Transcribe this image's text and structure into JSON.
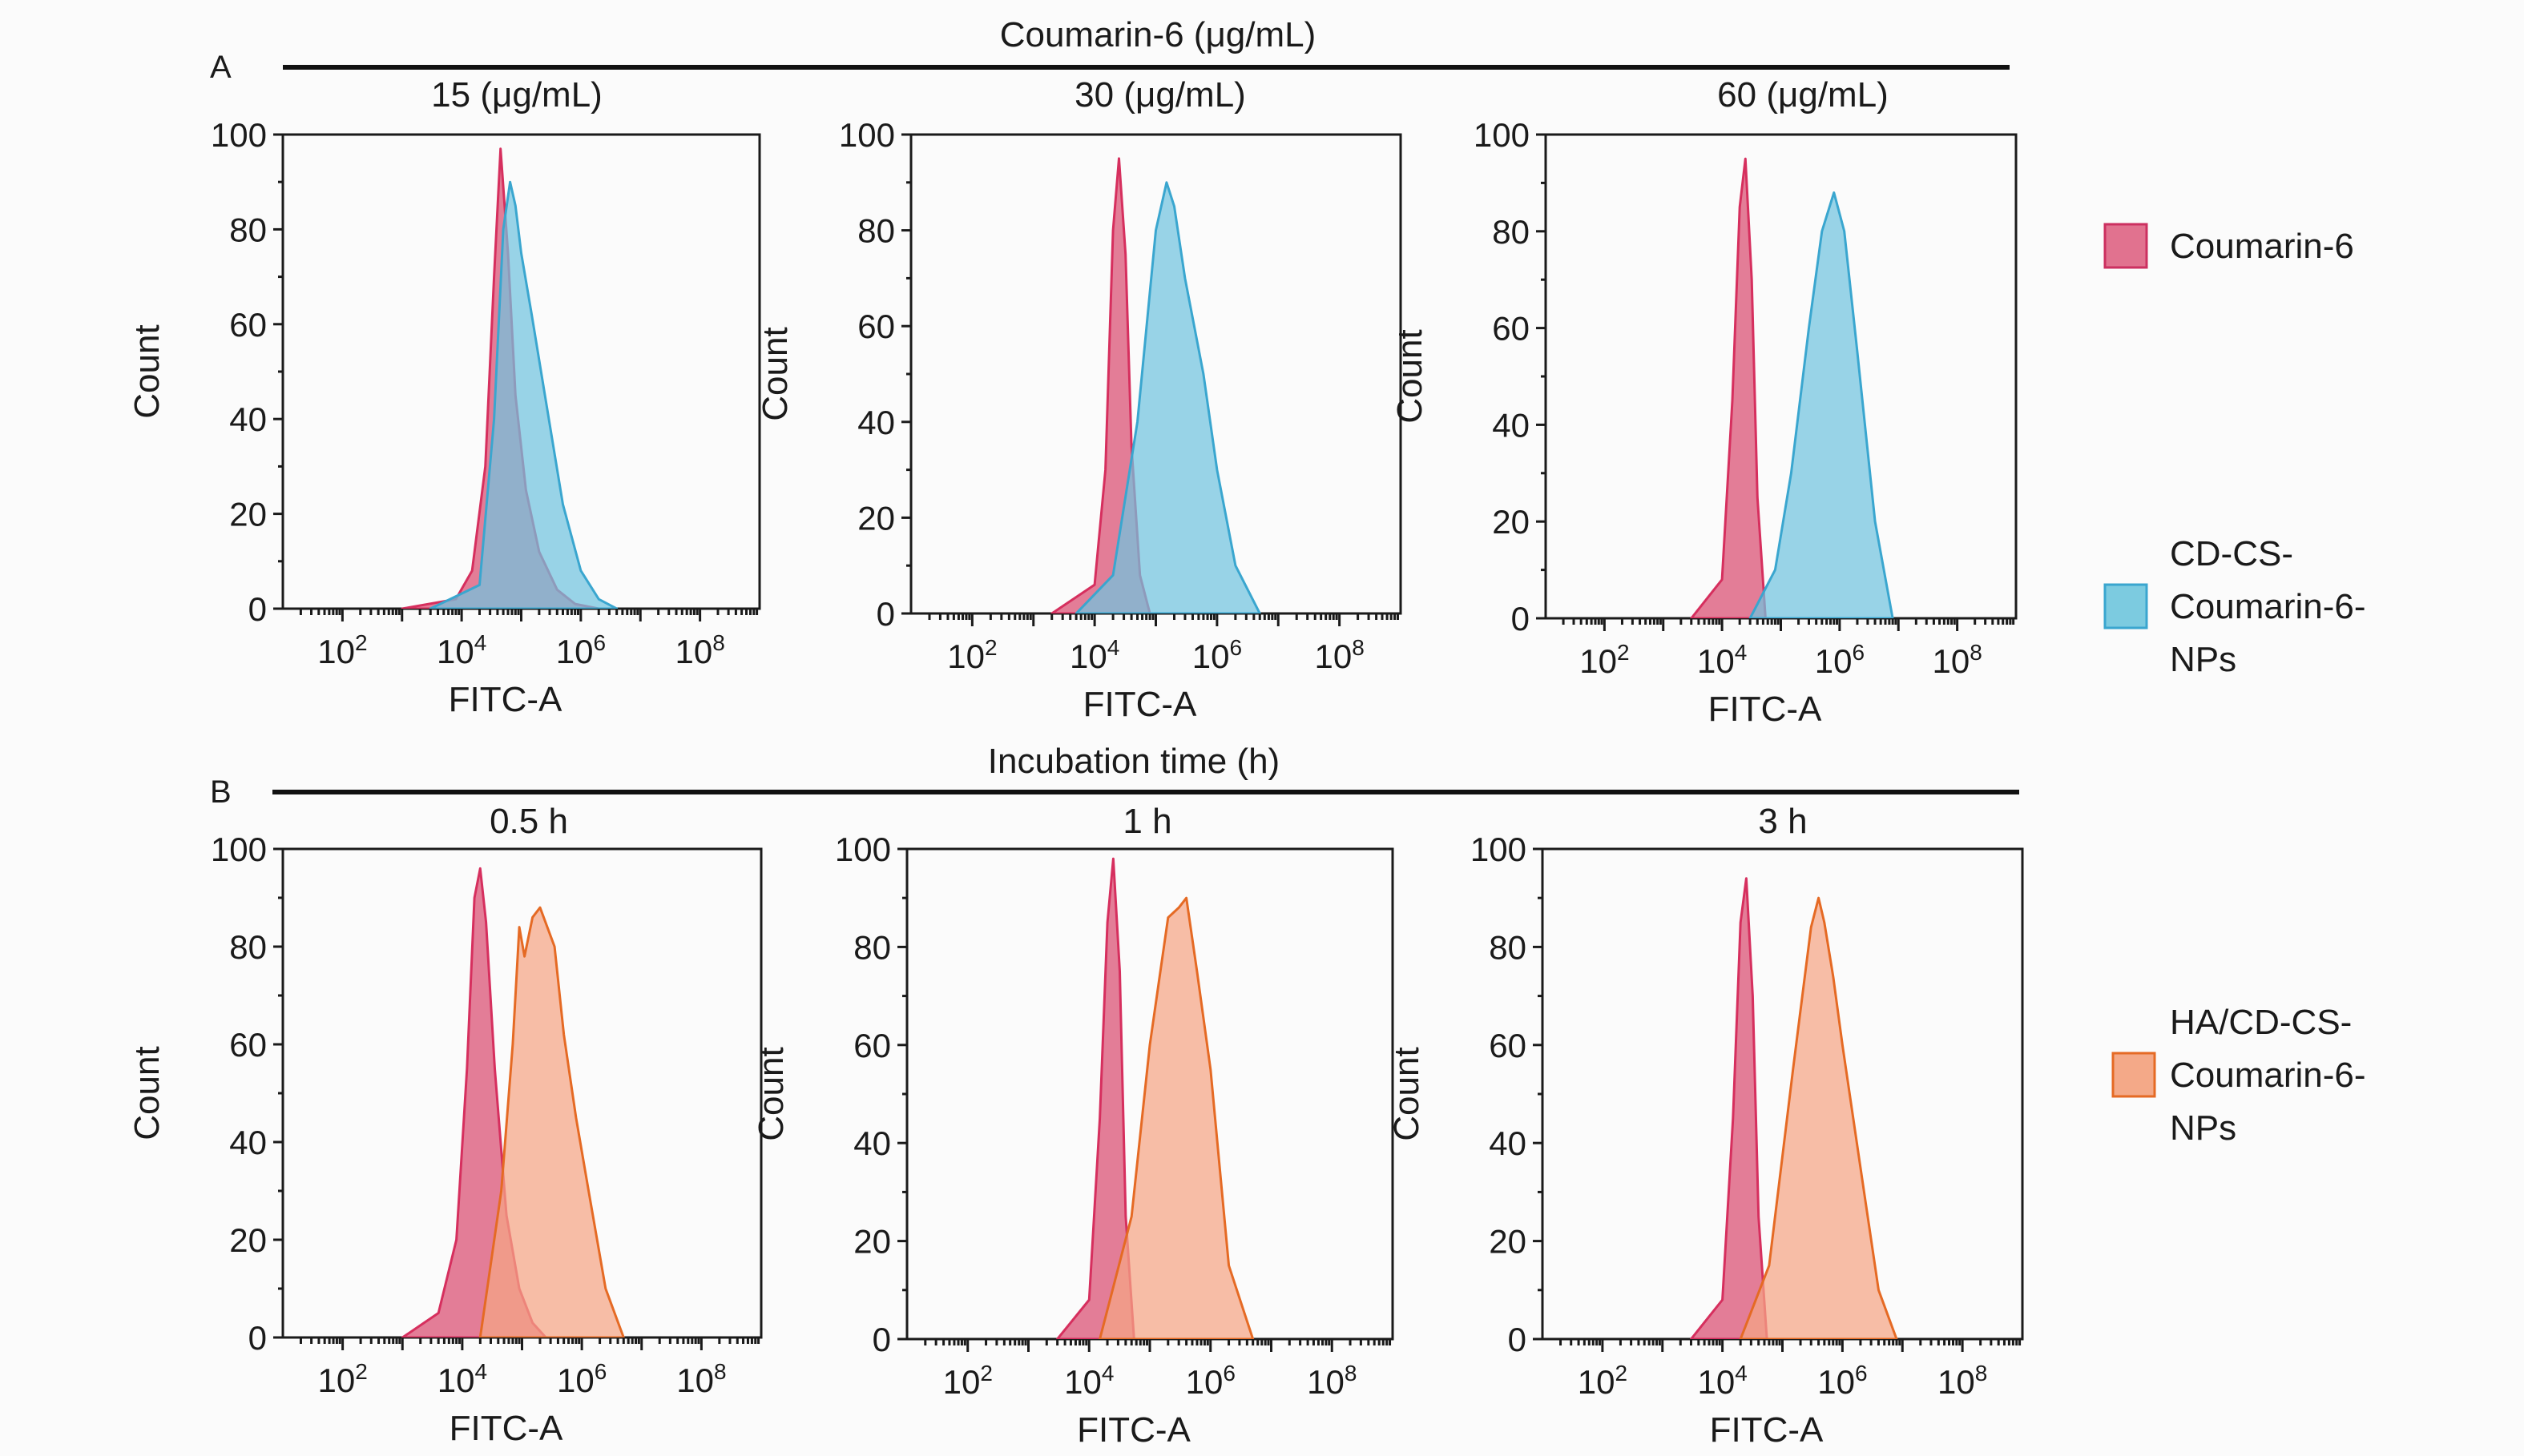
{
  "figure": {
    "panel_a": {
      "letter": "A",
      "header": "Coumarin-6 (μg/mL)",
      "subplots": [
        "15 (μg/mL)",
        "30 (μg/mL)",
        "60 (μg/mL)"
      ]
    },
    "panel_b": {
      "letter": "B",
      "header": "Incubation time (h)",
      "subplots": [
        "0.5 h",
        "1 h",
        "3 h"
      ]
    },
    "xlabel": "FITC-A",
    "ylabel": "Count",
    "y_ticks": [
      0,
      20,
      40,
      60,
      80,
      100
    ],
    "x_ticks": [
      {
        "base": "10",
        "exp": "2"
      },
      {
        "base": "10",
        "exp": "4"
      },
      {
        "base": "10",
        "exp": "6"
      },
      {
        "base": "10",
        "exp": "8"
      }
    ],
    "legend_a": [
      {
        "lines": [
          "Coumarin-6"
        ],
        "fill": "#e1728f",
        "stroke": "#cc3060"
      },
      {
        "lines": [
          "CD-CS-",
          "Coumarin-6-",
          "NPs"
        ],
        "fill": "#7ccbe0",
        "stroke": "#3aa6cf"
      }
    ],
    "legend_b": [
      {
        "lines": [
          "HA/CD-CS-",
          "Coumarin-6-",
          "NPs"
        ],
        "fill": "#f4a988",
        "stroke": "#e56a24"
      }
    ],
    "colors": {
      "coumarin6_fill": "#df6b89",
      "coumarin6_line": "#d62f5e",
      "cdcs_fill": "#72c3df",
      "cdcs_line": "#3aa6cf",
      "hacdcs_fill": "#f5a585",
      "hacdcs_line": "#e56a24",
      "overlap": "#9a9a86"
    }
  },
  "chart_data": [
    {
      "type": "area",
      "panel": "A",
      "subtitle": "15 (μg/mL)",
      "xlabel": "FITC-A",
      "ylabel": "Count",
      "x_scale": "log10",
      "xlim": [
        10,
        1000000000.0
      ],
      "ylim": [
        0,
        100
      ],
      "series": [
        {
          "name": "Coumarin-6",
          "x": [
            1000,
            8000,
            15000,
            25000,
            35000,
            45000,
            60000,
            80000,
            120000,
            200000,
            400000,
            800000,
            2000000
          ],
          "y": [
            0,
            2,
            8,
            30,
            70,
            97,
            75,
            45,
            25,
            12,
            4,
            1,
            0
          ]
        },
        {
          "name": "CD-CS-Coumarin-6-NPs",
          "x": [
            3000,
            20000,
            35000,
            50000,
            65000,
            80000,
            100000,
            150000,
            250000,
            500000,
            1000000,
            2000000,
            4000000
          ],
          "y": [
            0,
            5,
            40,
            80,
            90,
            85,
            75,
            62,
            45,
            22,
            8,
            2,
            0
          ]
        }
      ]
    },
    {
      "type": "area",
      "panel": "A",
      "subtitle": "30 (μg/mL)",
      "xlabel": "FITC-A",
      "ylabel": "Count",
      "x_scale": "log10",
      "xlim": [
        10,
        1000000000.0
      ],
      "ylim": [
        0,
        100
      ],
      "series": [
        {
          "name": "Coumarin-6",
          "x": [
            2000,
            10000,
            15000,
            20000,
            25000,
            32000,
            40000,
            55000,
            80000
          ],
          "y": [
            0,
            6,
            30,
            80,
            95,
            75,
            35,
            8,
            0
          ]
        },
        {
          "name": "CD-CS-Coumarin-6-NPs",
          "x": [
            5000,
            20000,
            50000,
            100000,
            150000,
            200000,
            300000,
            600000,
            1000000,
            2000000,
            5000000
          ],
          "y": [
            0,
            8,
            40,
            80,
            90,
            85,
            70,
            50,
            30,
            10,
            0
          ]
        }
      ]
    },
    {
      "type": "area",
      "panel": "A",
      "subtitle": "60 (μg/mL)",
      "xlabel": "FITC-A",
      "ylabel": "Count",
      "x_scale": "log10",
      "xlim": [
        10,
        1000000000.0
      ],
      "ylim": [
        0,
        100
      ],
      "series": [
        {
          "name": "Coumarin-6",
          "x": [
            3000,
            10000,
            15000,
            20000,
            25000,
            32000,
            40000,
            55000
          ],
          "y": [
            0,
            8,
            45,
            85,
            95,
            70,
            25,
            0
          ]
        },
        {
          "name": "CD-CS-Coumarin-6-NPs",
          "x": [
            30000,
            80000,
            150000,
            300000,
            500000,
            800000,
            1200000,
            2000000,
            4000000,
            8000000
          ],
          "y": [
            0,
            10,
            30,
            60,
            80,
            88,
            80,
            55,
            20,
            0
          ]
        }
      ]
    },
    {
      "type": "area",
      "panel": "B",
      "subtitle": "0.5 h",
      "xlabel": "FITC-A",
      "ylabel": "Count",
      "x_scale": "log10",
      "xlim": [
        10,
        1000000000.0
      ],
      "ylim": [
        0,
        100
      ],
      "series": [
        {
          "name": "Coumarin-6",
          "x": [
            1000,
            4000,
            8000,
            12000,
            16000,
            20000,
            25000,
            35000,
            55000,
            90000,
            150000,
            250000
          ],
          "y": [
            0,
            5,
            20,
            55,
            90,
            96,
            85,
            55,
            25,
            10,
            3,
            0
          ]
        },
        {
          "name": "HA/CD-CS-Coumarin-6-NPs",
          "x": [
            20000,
            45000,
            70000,
            90000,
            110000,
            150000,
            200000,
            350000,
            500000,
            800000,
            1300000,
            2500000,
            5000000
          ],
          "y": [
            0,
            30,
            60,
            84,
            78,
            86,
            88,
            80,
            62,
            45,
            30,
            10,
            0
          ]
        }
      ]
    },
    {
      "type": "area",
      "panel": "B",
      "subtitle": "1 h",
      "xlabel": "FITC-A",
      "ylabel": "Count",
      "x_scale": "log10",
      "xlim": [
        10,
        1000000000.0
      ],
      "ylim": [
        0,
        100
      ],
      "series": [
        {
          "name": "Coumarin-6",
          "x": [
            3000,
            10000,
            15000,
            20000,
            25000,
            32000,
            40000,
            55000
          ],
          "y": [
            0,
            8,
            45,
            85,
            98,
            75,
            25,
            0
          ]
        },
        {
          "name": "HA/CD-CS-Coumarin-6-NPs",
          "x": [
            15000,
            50000,
            100000,
            200000,
            300000,
            400000,
            600000,
            1000000,
            2000000,
            5000000
          ],
          "y": [
            0,
            25,
            60,
            86,
            88,
            90,
            75,
            55,
            15,
            0
          ]
        }
      ]
    },
    {
      "type": "area",
      "panel": "B",
      "subtitle": "3 h",
      "xlabel": "FITC-A",
      "ylabel": "Count",
      "x_scale": "log10",
      "xlim": [
        10,
        1000000000.0
      ],
      "ylim": [
        0,
        100
      ],
      "series": [
        {
          "name": "Coumarin-6",
          "x": [
            3000,
            10000,
            15000,
            20000,
            25000,
            32000,
            40000,
            55000
          ],
          "y": [
            0,
            8,
            45,
            85,
            94,
            70,
            25,
            0
          ]
        },
        {
          "name": "HA/CD-CS-Coumarin-6-NPs",
          "x": [
            20000,
            60000,
            150000,
            300000,
            400000,
            500000,
            700000,
            1000000,
            2000000,
            4000000,
            8000000
          ],
          "y": [
            0,
            15,
            55,
            84,
            90,
            85,
            74,
            60,
            35,
            10,
            0
          ]
        }
      ]
    }
  ]
}
